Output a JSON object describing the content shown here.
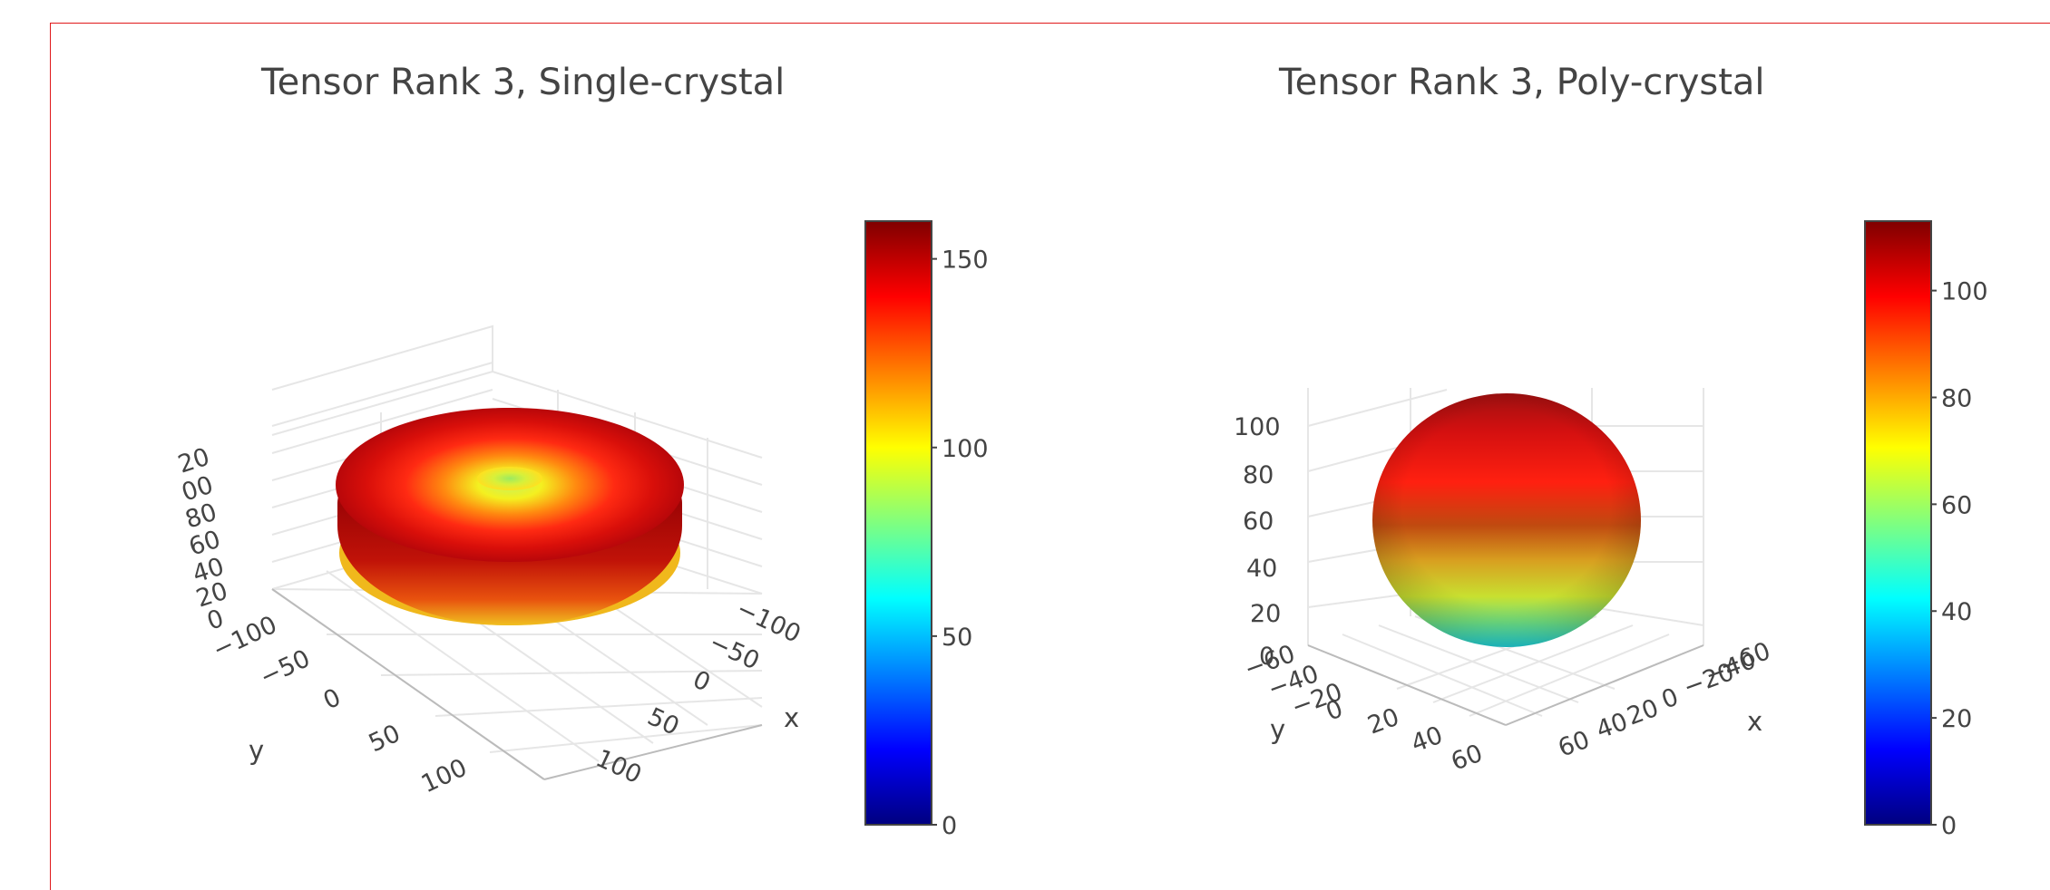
{
  "chart_data": [
    {
      "type": "surface3d",
      "title": "Tensor Rank 3, Single-crystal",
      "shape": "torus",
      "colorscale": "jet",
      "color_range": [
        0,
        160
      ],
      "colorbar_ticks": [
        "0",
        "50",
        "100",
        "150"
      ],
      "colorbar_tick_values": [
        0,
        50,
        100,
        150
      ],
      "axes": {
        "x": {
          "title": "x",
          "ticks": [
            "−100",
            "−50",
            "0",
            "50",
            "100"
          ]
        },
        "y": {
          "title": "y",
          "ticks": [
            "−100",
            "−50",
            "0",
            "50",
            "100"
          ]
        },
        "z": {
          "title": "",
          "ticks": [
            "0",
            "20",
            "40",
            "60",
            "80",
            "00",
            "20"
          ]
        }
      }
    },
    {
      "type": "surface3d",
      "title": "Tensor Rank 3, Poly-crystal",
      "shape": "sphere",
      "colorscale": "jet",
      "color_range": [
        0,
        113
      ],
      "colorbar_ticks": [
        "0",
        "20",
        "40",
        "60",
        "80",
        "100"
      ],
      "colorbar_tick_values": [
        0,
        20,
        40,
        60,
        80,
        100
      ],
      "axes": {
        "x": {
          "title": "x",
          "ticks": [
            "−60",
            "−40",
            "−20",
            "0",
            "20",
            "40",
            "60"
          ]
        },
        "y": {
          "title": "y",
          "ticks": [
            "−60",
            "−40",
            "−20",
            "0",
            "20",
            "40",
            "60"
          ]
        },
        "z": {
          "title": "",
          "ticks": [
            "0",
            "20",
            "40",
            "60",
            "80",
            "100"
          ]
        }
      }
    }
  ]
}
